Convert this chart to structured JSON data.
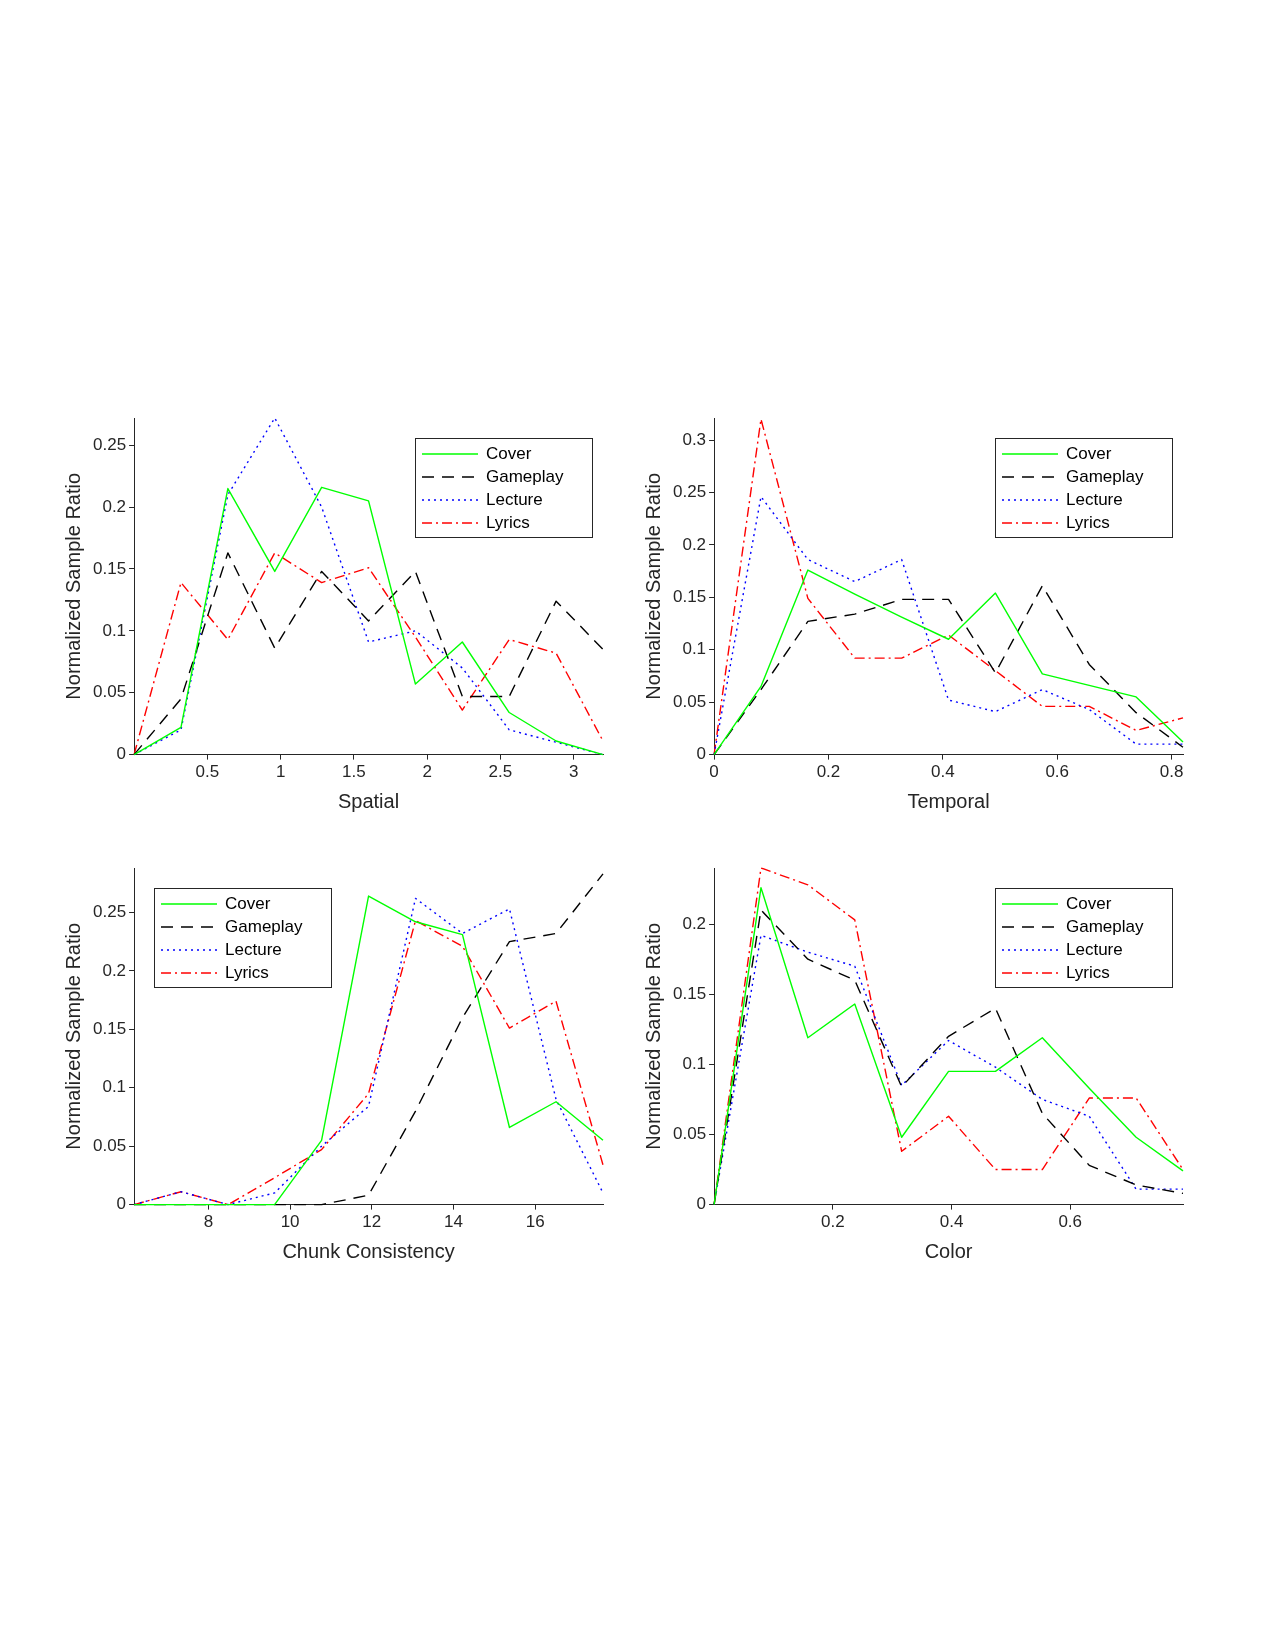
{
  "chart_data": [
    {
      "type": "line",
      "xlabel": "Spatial",
      "ylabel": "Normalized Sample Ratio",
      "x": [
        0,
        0.32,
        0.64,
        0.96,
        1.28,
        1.6,
        1.92,
        2.24,
        2.56,
        2.88,
        3.2
      ],
      "xlim": [
        0,
        3.2
      ],
      "xticks": [
        0.5,
        1,
        1.5,
        2,
        2.5,
        3
      ],
      "ylim": [
        0,
        0.272
      ],
      "yticks": [
        0,
        0.05,
        0.1,
        0.15,
        0.2,
        0.25
      ],
      "grid": false,
      "legend": "top right",
      "series": [
        {
          "name": "Cover",
          "color": "#00ff00",
          "line_style": "solid",
          "values": [
            0,
            0.022,
            0.215,
            0.148,
            0.216,
            0.205,
            0.057,
            0.091,
            0.034,
            0.011,
            0
          ]
        },
        {
          "name": "Gameplay",
          "color": "#000000",
          "line_style": "dashed",
          "values": [
            0,
            0.045,
            0.163,
            0.086,
            0.148,
            0.108,
            0.148,
            0.047,
            0.047,
            0.124,
            0.085
          ]
        },
        {
          "name": "Lecture",
          "color": "#0000ff",
          "line_style": "dotted",
          "values": [
            0,
            0.02,
            0.21,
            0.272,
            0.2,
            0.091,
            0.1,
            0.07,
            0.02,
            0.01,
            0
          ]
        },
        {
          "name": "Lyrics",
          "color": "#ff0000",
          "line_style": "dashdot",
          "values": [
            0,
            0.139,
            0.093,
            0.163,
            0.139,
            0.151,
            0.095,
            0.036,
            0.093,
            0.082,
            0.011
          ]
        }
      ]
    },
    {
      "type": "line",
      "xlabel": "Temporal",
      "ylabel": "Normalized Sample Ratio",
      "x": [
        0,
        0.082,
        0.164,
        0.246,
        0.328,
        0.41,
        0.492,
        0.574,
        0.656,
        0.738,
        0.82
      ],
      "xlim": [
        0,
        0.82
      ],
      "xticks": [
        0,
        0.2,
        0.4,
        0.6,
        0.8
      ],
      "ylim": [
        0,
        0.321
      ],
      "yticks": [
        0,
        0.05,
        0.1,
        0.15,
        0.2,
        0.25,
        0.3
      ],
      "grid": false,
      "legend": "top right",
      "series": [
        {
          "name": "Cover",
          "color": "#00ff00",
          "line_style": "solid",
          "values": [
            0,
            0.065,
            0.176,
            0.153,
            0.131,
            0.11,
            0.154,
            0.077,
            0.066,
            0.055,
            0.012
          ]
        },
        {
          "name": "Gameplay",
          "color": "#000000",
          "line_style": "dashed",
          "values": [
            0,
            0.062,
            0.127,
            0.134,
            0.148,
            0.148,
            0.078,
            0.161,
            0.086,
            0.04,
            0.007
          ]
        },
        {
          "name": "Lecture",
          "color": "#0000ff",
          "line_style": "dotted",
          "values": [
            0,
            0.246,
            0.186,
            0.165,
            0.186,
            0.052,
            0.041,
            0.062,
            0.043,
            0.01,
            0.01
          ]
        },
        {
          "name": "Lyrics",
          "color": "#ff0000",
          "line_style": "dashdot",
          "values": [
            0,
            0.32,
            0.149,
            0.092,
            0.092,
            0.114,
            0.08,
            0.046,
            0.046,
            0.023,
            0.035
          ]
        }
      ]
    },
    {
      "type": "line",
      "xlabel": "Chunk Consistency",
      "ylabel": "Normalized Sample Ratio",
      "x": [
        6.18,
        7.33,
        8.48,
        9.62,
        10.77,
        11.92,
        13.07,
        14.22,
        15.37,
        16.51,
        17.66
      ],
      "xlim": [
        6.18,
        17.66
      ],
      "xticks": [
        8,
        10,
        12,
        14,
        16
      ],
      "ylim": [
        0,
        0.288
      ],
      "yticks": [
        0,
        0.05,
        0.1,
        0.15,
        0.2,
        0.25
      ],
      "grid": false,
      "legend": "top left",
      "series": [
        {
          "name": "Cover",
          "color": "#00ff00",
          "line_style": "solid",
          "values": [
            0,
            0,
            0,
            0,
            0.055,
            0.264,
            0.242,
            0.231,
            0.066,
            0.088,
            0.055
          ]
        },
        {
          "name": "Gameplay",
          "color": "#000000",
          "line_style": "dashed",
          "values": [
            0,
            0,
            0,
            0,
            0,
            0.008,
            0.08,
            0.16,
            0.225,
            0.232,
            0.283
          ]
        },
        {
          "name": "Lecture",
          "color": "#0000ff",
          "line_style": "dotted",
          "values": [
            0,
            0.011,
            0,
            0.01,
            0.05,
            0.084,
            0.262,
            0.232,
            0.253,
            0.09,
            0.01
          ]
        },
        {
          "name": "Lyrics",
          "color": "#ff0000",
          "line_style": "dashdot",
          "values": [
            0,
            0.011,
            0,
            0.023,
            0.047,
            0.095,
            0.243,
            0.221,
            0.151,
            0.174,
            0.034
          ]
        }
      ]
    },
    {
      "type": "line",
      "xlabel": "Color",
      "ylabel": "Normalized Sample Ratio",
      "x": [
        0,
        0.079,
        0.158,
        0.237,
        0.316,
        0.395,
        0.474,
        0.553,
        0.632,
        0.711,
        0.79
      ],
      "xlim": [
        0,
        0.79
      ],
      "xticks": [
        0.2,
        0.4,
        0.6
      ],
      "ylim": [
        0,
        0.24
      ],
      "yticks": [
        0,
        0.05,
        0.1,
        0.15,
        0.2
      ],
      "grid": false,
      "legend": "top right",
      "series": [
        {
          "name": "Cover",
          "color": "#00ff00",
          "line_style": "solid",
          "values": [
            0,
            0.226,
            0.119,
            0.143,
            0.048,
            0.095,
            0.095,
            0.119,
            0.083,
            0.048,
            0.024
          ]
        },
        {
          "name": "Gameplay",
          "color": "#000000",
          "line_style": "dashed",
          "values": [
            0,
            0.21,
            0.175,
            0.16,
            0.084,
            0.12,
            0.14,
            0.065,
            0.028,
            0.014,
            0.008
          ]
        },
        {
          "name": "Lecture",
          "color": "#0000ff",
          "line_style": "dotted",
          "values": [
            0,
            0.192,
            0.18,
            0.17,
            0.085,
            0.117,
            0.098,
            0.075,
            0.063,
            0.011,
            0.011
          ]
        },
        {
          "name": "Lyrics",
          "color": "#ff0000",
          "line_style": "dashdot",
          "values": [
            0,
            0.24,
            0.228,
            0.203,
            0.038,
            0.063,
            0.025,
            0.025,
            0.076,
            0.076,
            0.025
          ]
        }
      ]
    }
  ]
}
